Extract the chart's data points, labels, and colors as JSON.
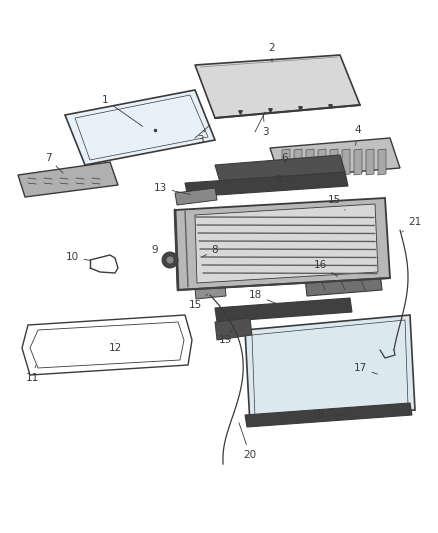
{
  "bg_color": "#ffffff",
  "lc": "#3a3a3a",
  "fig_width": 4.38,
  "fig_height": 5.33,
  "dpi": 100
}
